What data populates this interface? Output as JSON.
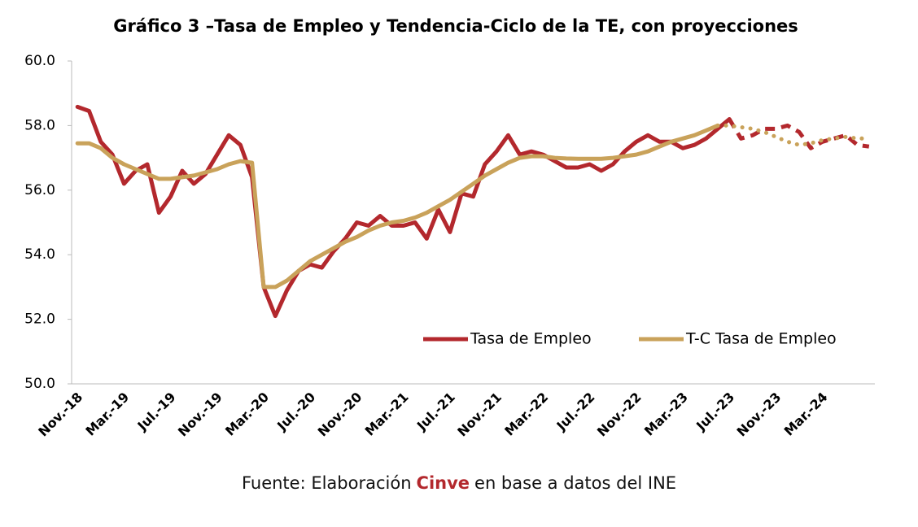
{
  "chart_data": {
    "type": "line",
    "title": "Gráfico 3 –Tasa de Empleo y Tendencia-Ciclo de la TE, con proyecciones",
    "categories": [
      "Nov.-18",
      null,
      null,
      null,
      "Mar.-19",
      null,
      null,
      null,
      "Jul.-19",
      null,
      null,
      null,
      "Nov.-19",
      null,
      null,
      null,
      "Mar.-20",
      null,
      null,
      null,
      "Jul.-20",
      null,
      null,
      null,
      "Nov.-20",
      null,
      null,
      null,
      "Mar.-21",
      null,
      null,
      null,
      "Jul.-21",
      null,
      null,
      null,
      "Nov.-21",
      null,
      null,
      null,
      "Mar.-22",
      null,
      null,
      null,
      "Jul.-22",
      null,
      null,
      null,
      "Nov.-22",
      null,
      null,
      null,
      "Mar.-23",
      null,
      null,
      null,
      "Jul.-23",
      null,
      null,
      null,
      "Nov.-23",
      null,
      null,
      null,
      "Mar.-24",
      null,
      null,
      null,
      null
    ],
    "series": [
      {
        "name": "Tasa de Empleo",
        "color": "#b3282d",
        "projection_start": 56,
        "values": [
          58.58,
          58.45,
          57.5,
          57.1,
          56.2,
          56.6,
          56.8,
          55.3,
          55.8,
          56.6,
          56.2,
          56.5,
          57.1,
          57.7,
          57.4,
          56.4,
          53.0,
          52.1,
          52.9,
          53.5,
          53.7,
          53.6,
          54.1,
          54.5,
          55.0,
          54.9,
          55.2,
          54.9,
          54.9,
          55.0,
          54.5,
          55.4,
          54.7,
          55.9,
          55.8,
          56.8,
          57.2,
          57.7,
          57.1,
          57.2,
          57.1,
          56.9,
          56.7,
          56.7,
          56.8,
          56.6,
          56.8,
          57.2,
          57.5,
          57.7,
          57.5,
          57.5,
          57.3,
          57.4,
          57.6,
          57.9,
          58.2,
          57.6,
          57.7,
          57.9,
          57.9,
          58.0,
          57.8,
          57.3,
          57.5,
          57.6,
          57.7,
          57.4,
          57.35
        ]
      },
      {
        "name": "T-C Tasa de Empleo",
        "color": "#c9a25a",
        "projection_start": 55,
        "values": [
          57.45,
          57.45,
          57.3,
          57.0,
          56.8,
          56.65,
          56.5,
          56.35,
          56.35,
          56.4,
          56.45,
          56.55,
          56.65,
          56.8,
          56.9,
          56.85,
          53.0,
          53.0,
          53.2,
          53.5,
          53.8,
          54.0,
          54.2,
          54.4,
          54.55,
          54.75,
          54.9,
          55.0,
          55.05,
          55.15,
          55.3,
          55.5,
          55.7,
          55.95,
          56.2,
          56.45,
          56.65,
          56.85,
          57.0,
          57.05,
          57.05,
          57.0,
          56.98,
          56.97,
          56.97,
          56.97,
          57.0,
          57.05,
          57.1,
          57.2,
          57.35,
          57.5,
          57.6,
          57.7,
          57.85,
          58.0,
          58.0,
          57.95,
          57.9,
          57.8,
          57.65,
          57.5,
          57.4,
          57.45,
          57.55,
          57.6,
          57.65,
          57.6,
          57.6
        ]
      }
    ],
    "ylim": [
      50,
      60
    ],
    "yticks": [
      {
        "value": 50,
        "label": "50.0"
      },
      {
        "value": 52,
        "label": "52.0"
      },
      {
        "value": 54,
        "label": "54.0"
      },
      {
        "value": 56,
        "label": "56.0"
      },
      {
        "value": 58,
        "label": "58.0"
      },
      {
        "value": 60,
        "label": "60.0"
      }
    ],
    "legend": "lower right",
    "source": {
      "prefix": "Fuente: Elaboración",
      "highlight": "Cinve",
      "suffix": "en base a datos del INE"
    }
  }
}
